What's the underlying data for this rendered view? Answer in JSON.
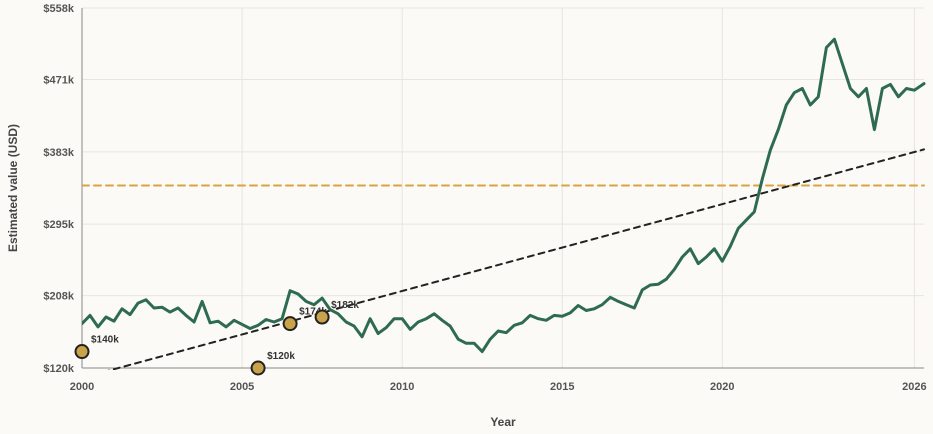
{
  "chart_data": {
    "type": "line",
    "title": "",
    "xlabel": "Year",
    "ylabel": "Estimated value (USD)",
    "xlim": [
      2000.0,
      2026.3
    ],
    "ylim": [
      120000,
      558000
    ],
    "y_ticks": [
      120000,
      208000,
      295000,
      383000,
      471000,
      558000
    ],
    "y_tick_labels": [
      "$120k",
      "$208k",
      "$295k",
      "$383k",
      "$471k",
      "$558k"
    ],
    "x_ticks": [
      2000,
      2005,
      2010,
      2015,
      2020,
      2026
    ],
    "x_tick_labels": [
      "2000",
      "2005",
      "2010",
      "2015",
      "2020",
      "2026"
    ],
    "grid": true,
    "colors": {
      "series": "#2e6b50",
      "trend": "#222222",
      "reference": "#d9a441",
      "marker_fill": "#c9a24a",
      "marker_stroke": "#222222"
    },
    "series": [
      {
        "x": [
          2000.0,
          2000.25,
          2000.5,
          2000.75,
          2001.0,
          2001.25,
          2001.5,
          2001.75,
          2002.0,
          2002.25,
          2002.5,
          2002.75,
          2003.0,
          2003.25,
          2003.5,
          2003.75,
          2004.0,
          2004.25,
          2004.5,
          2004.75,
          2005.0,
          2005.25,
          2005.5,
          2005.75,
          2006.0,
          2006.25,
          2006.5,
          2006.75,
          2007.0,
          2007.25,
          2007.5,
          2007.75,
          2008.0,
          2008.25,
          2008.5,
          2008.75,
          2009.0,
          2009.25,
          2009.5,
          2009.75,
          2010.0,
          2010.25,
          2010.5,
          2010.75,
          2011.0,
          2011.25,
          2011.5,
          2011.75,
          2012.0,
          2012.25,
          2012.5,
          2012.75,
          2013.0,
          2013.25,
          2013.5,
          2013.75,
          2014.0,
          2014.25,
          2014.5,
          2014.75,
          2015.0,
          2015.25,
          2015.5,
          2015.75,
          2016.0,
          2016.25,
          2016.5,
          2016.75,
          2017.0,
          2017.25,
          2017.5,
          2017.75,
          2018.0,
          2018.25,
          2018.5,
          2018.75,
          2019.0,
          2019.25,
          2019.5,
          2019.75,
          2020.0,
          2020.25,
          2020.5,
          2020.75,
          2021.0,
          2021.25,
          2021.5,
          2021.75,
          2022.0,
          2022.25,
          2022.5,
          2022.75,
          2023.0,
          2023.25,
          2023.5,
          2023.75,
          2024.0,
          2024.25,
          2024.5,
          2024.75,
          2025.0,
          2025.25,
          2025.5,
          2025.75,
          2026.0,
          2026.3
        ],
        "values": [
          174000,
          184000,
          170000,
          182000,
          177000,
          192000,
          185000,
          199000,
          203000,
          193000,
          194000,
          188000,
          193000,
          184000,
          176000,
          201000,
          175000,
          177000,
          170000,
          178000,
          173000,
          168000,
          172000,
          179000,
          176000,
          180000,
          214000,
          210000,
          201000,
          197000,
          205000,
          191000,
          186000,
          176000,
          171000,
          158000,
          180000,
          162000,
          169000,
          180000,
          180000,
          167000,
          176000,
          180000,
          186000,
          178000,
          171000,
          155000,
          150000,
          150000,
          140000,
          155000,
          165000,
          163000,
          172000,
          175000,
          184000,
          180000,
          178000,
          184000,
          183000,
          187000,
          196000,
          190000,
          192000,
          197000,
          206000,
          201000,
          197000,
          193000,
          215000,
          221000,
          222000,
          228000,
          240000,
          255000,
          265000,
          247000,
          255000,
          265000,
          250000,
          268000,
          290000,
          300000,
          310000,
          350000,
          385000,
          410000,
          440000,
          455000,
          460000,
          440000,
          450000,
          510000,
          520000,
          490000,
          460000,
          450000,
          460000,
          410000,
          460000,
          465000,
          450000,
          460000,
          458000,
          466000
        ],
        "line_style": "solid"
      },
      {
        "x": [
          2000.0,
          2026.3
        ],
        "values": [
          108000,
          386000
        ],
        "line_style": "dashed"
      },
      {
        "x": [
          2000.0,
          2026.3
        ],
        "values": [
          342000,
          342000
        ],
        "line_style": "dashed"
      }
    ],
    "points": [
      {
        "x": 2000.0,
        "y": 140000,
        "label": "$140k"
      },
      {
        "x": 2005.5,
        "y": 120000,
        "label": "$120k"
      },
      {
        "x": 2006.5,
        "y": 174000,
        "label": "$174k"
      },
      {
        "x": 2007.5,
        "y": 182000,
        "label": "$182k"
      }
    ]
  }
}
